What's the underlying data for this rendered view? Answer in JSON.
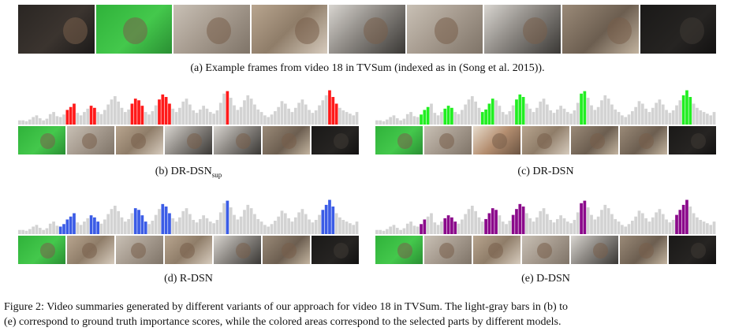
{
  "captions": {
    "a": "(a) Example frames from video 18 in TVSum (indexed as in (Song et al. 2015)).",
    "b_main": "(b) DR-DSN",
    "b_sub": "sup",
    "c": "(c) DR-DSN",
    "d": "(d) R-DSN",
    "e": "(e) D-DSN"
  },
  "figure_caption": {
    "line1": "Figure 2: Video summaries generated by different variants of our approach for video 18 in TVSum. The light-gray bars in (b) to",
    "line2": "(e) correspond to ground truth importance scores, while the colored areas correspond to the selected parts by different models."
  },
  "colors": {
    "gt_bar": "#d3d3d3",
    "b": "#ff1a1a",
    "c": "#22ee22",
    "d": "#3b5ce6",
    "e": "#8b0a8b"
  },
  "top_frames": [
    "scene-dark-person",
    "scene-green-person",
    "scene-kitchen-onion",
    "scene-counter-cutting",
    "scene-stove-pot",
    "scene-kitchen-hand",
    "scene-stove-stirring",
    "scene-room-eating",
    "scene-black-dark"
  ],
  "panel_thumbs": {
    "b": [
      "scene-green",
      "scene-kitchen",
      "scene-counter",
      "scene-stove",
      "scene-stove",
      "scene-room",
      "scene-black"
    ],
    "c": [
      "scene-green",
      "scene-kitchen",
      "scene-face",
      "scene-counter",
      "scene-room",
      "scene-room",
      "scene-black"
    ],
    "d": [
      "scene-green",
      "scene-counter",
      "scene-kitchen",
      "scene-counter",
      "scene-stove",
      "scene-room",
      "scene-black"
    ],
    "e": [
      "scene-green",
      "scene-kitchen",
      "scene-counter",
      "scene-kitchen",
      "scene-stove",
      "scene-room",
      "scene-black"
    ]
  },
  "chart_data": {
    "type": "bar",
    "scores": [
      0.1,
      0.1,
      0.08,
      0.12,
      0.18,
      0.22,
      0.15,
      0.1,
      0.14,
      0.25,
      0.3,
      0.2,
      0.18,
      0.24,
      0.35,
      0.42,
      0.5,
      0.28,
      0.22,
      0.3,
      0.38,
      0.45,
      0.4,
      0.3,
      0.25,
      0.35,
      0.48,
      0.6,
      0.68,
      0.55,
      0.4,
      0.3,
      0.36,
      0.5,
      0.62,
      0.58,
      0.45,
      0.3,
      0.24,
      0.32,
      0.46,
      0.6,
      0.72,
      0.66,
      0.5,
      0.38,
      0.3,
      0.4,
      0.55,
      0.62,
      0.48,
      0.34,
      0.28,
      0.36,
      0.45,
      0.38,
      0.3,
      0.26,
      0.34,
      0.52,
      0.74,
      0.8,
      0.64,
      0.46,
      0.35,
      0.42,
      0.58,
      0.7,
      0.62,
      0.48,
      0.36,
      0.3,
      0.22,
      0.18,
      0.24,
      0.32,
      0.42,
      0.56,
      0.5,
      0.38,
      0.3,
      0.4,
      0.52,
      0.6,
      0.48,
      0.35,
      0.28,
      0.34,
      0.46,
      0.58,
      0.7,
      0.82,
      0.66,
      0.5,
      0.4,
      0.34,
      0.3,
      0.26,
      0.22,
      0.3
    ],
    "selected": {
      "b": [
        [
          14,
          16
        ],
        [
          21,
          22
        ],
        [
          33,
          36
        ],
        [
          41,
          44
        ],
        [
          61,
          61
        ],
        [
          91,
          93
        ]
      ],
      "c": [
        [
          13,
          15
        ],
        [
          20,
          22
        ],
        [
          31,
          34
        ],
        [
          41,
          43
        ],
        [
          60,
          61
        ],
        [
          90,
          92
        ]
      ],
      "d": [
        [
          12,
          16
        ],
        [
          21,
          23
        ],
        [
          34,
          37
        ],
        [
          42,
          44
        ],
        [
          61,
          61
        ],
        [
          89,
          92
        ]
      ],
      "e": [
        [
          13,
          14
        ],
        [
          20,
          23
        ],
        [
          32,
          35
        ],
        [
          40,
          43
        ],
        [
          60,
          61
        ],
        [
          88,
          91
        ]
      ]
    }
  }
}
